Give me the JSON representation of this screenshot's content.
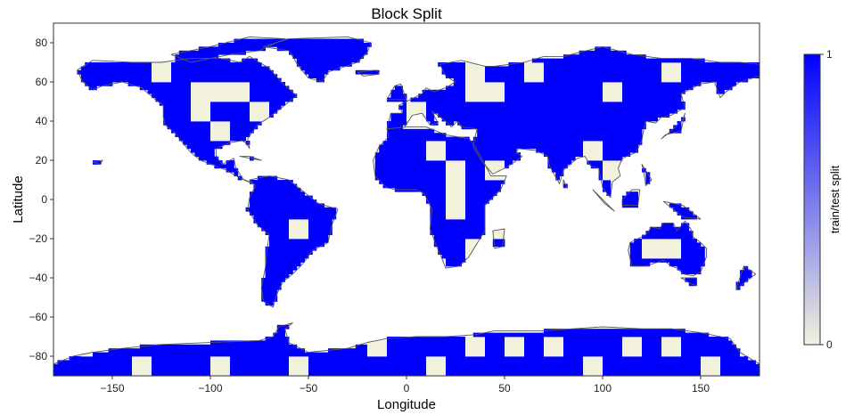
{
  "chart_data": {
    "type": "heatmap",
    "title": "Block Split",
    "xlabel": "Longitude",
    "ylabel": "Latitude",
    "xlim": [
      -180,
      180
    ],
    "ylim": [
      -90,
      90
    ],
    "xticks": [
      -150,
      -100,
      -50,
      0,
      50,
      100,
      150
    ],
    "yticks": [
      -80,
      -60,
      -40,
      -20,
      0,
      20,
      40,
      60,
      80
    ],
    "block_size_deg": 10,
    "grid": false,
    "colorbar": {
      "label": "train/test split",
      "range": [
        0,
        1
      ],
      "ticks": [
        0,
        1
      ],
      "color_low": "#f2f2dc",
      "color_high": "#0000ff",
      "placement": "right"
    },
    "land_outline_color": "#555555",
    "cells": [
      {
        "lon": -70,
        "lat": 60,
        "value": 1
      },
      {
        "lon": -130,
        "lat": 60,
        "value": 0
      },
      {
        "lon": -110,
        "lat": 50,
        "value": 0
      },
      {
        "lon": -100,
        "lat": 50,
        "value": 0
      },
      {
        "lon": -90,
        "lat": 50,
        "value": 0
      },
      {
        "lon": -110,
        "lat": 40,
        "value": 0
      },
      {
        "lon": -80,
        "lat": 40,
        "value": 0
      },
      {
        "lon": -100,
        "lat": 30,
        "value": 0
      },
      {
        "lon": -30,
        "lat": 80,
        "value": 1
      },
      {
        "lon": -40,
        "lat": 70,
        "value": 1
      },
      {
        "lon": 30,
        "lat": 60,
        "value": 0
      },
      {
        "lon": 30,
        "lat": 50,
        "value": 0
      },
      {
        "lon": 40,
        "lat": 50,
        "value": 0
      },
      {
        "lon": 60,
        "lat": 60,
        "value": 0
      },
      {
        "lon": 130,
        "lat": 60,
        "value": 0
      },
      {
        "lon": 100,
        "lat": 50,
        "value": 0
      },
      {
        "lon": 0,
        "lat": 40,
        "value": 0
      },
      {
        "lon": 10,
        "lat": 20,
        "value": 0
      },
      {
        "lon": 20,
        "lat": 10,
        "value": 0
      },
      {
        "lon": 40,
        "lat": 10,
        "value": 0
      },
      {
        "lon": 20,
        "lat": 0,
        "value": 0
      },
      {
        "lon": 20,
        "lat": -10,
        "value": 0
      },
      {
        "lon": 30,
        "lat": -30,
        "value": 0
      },
      {
        "lon": 40,
        "lat": -20,
        "value": 0
      },
      {
        "lon": 10,
        "lat": -40,
        "value": 0
      },
      {
        "lon": 90,
        "lat": 20,
        "value": 0
      },
      {
        "lon": 100,
        "lat": 10,
        "value": 0
      },
      {
        "lon": 110,
        "lat": -10,
        "value": 1
      },
      {
        "lon": -60,
        "lat": -20,
        "value": 0
      },
      {
        "lon": -60,
        "lat": -10,
        "value": 1
      },
      {
        "lon": 140,
        "lat": -20,
        "value": 1
      },
      {
        "lon": 120,
        "lat": -30,
        "value": 0
      },
      {
        "lon": 130,
        "lat": -30,
        "value": 0
      },
      {
        "lon": -170,
        "lat": -80,
        "value": 0
      },
      {
        "lon": -140,
        "lat": -90,
        "value": 0
      },
      {
        "lon": -100,
        "lat": -90,
        "value": 0
      },
      {
        "lon": -60,
        "lat": -90,
        "value": 0
      },
      {
        "lon": -20,
        "lat": -80,
        "value": 0
      },
      {
        "lon": 10,
        "lat": -90,
        "value": 0
      },
      {
        "lon": 30,
        "lat": -80,
        "value": 0
      },
      {
        "lon": 50,
        "lat": -80,
        "value": 0
      },
      {
        "lon": 70,
        "lat": -80,
        "value": 0
      },
      {
        "lon": 90,
        "lat": -90,
        "value": 0
      },
      {
        "lon": 110,
        "lat": -80,
        "value": 0
      },
      {
        "lon": 130,
        "lat": -80,
        "value": 0
      },
      {
        "lon": 150,
        "lat": -90,
        "value": 0
      },
      {
        "lon": 170,
        "lat": -80,
        "value": 0
      }
    ]
  }
}
